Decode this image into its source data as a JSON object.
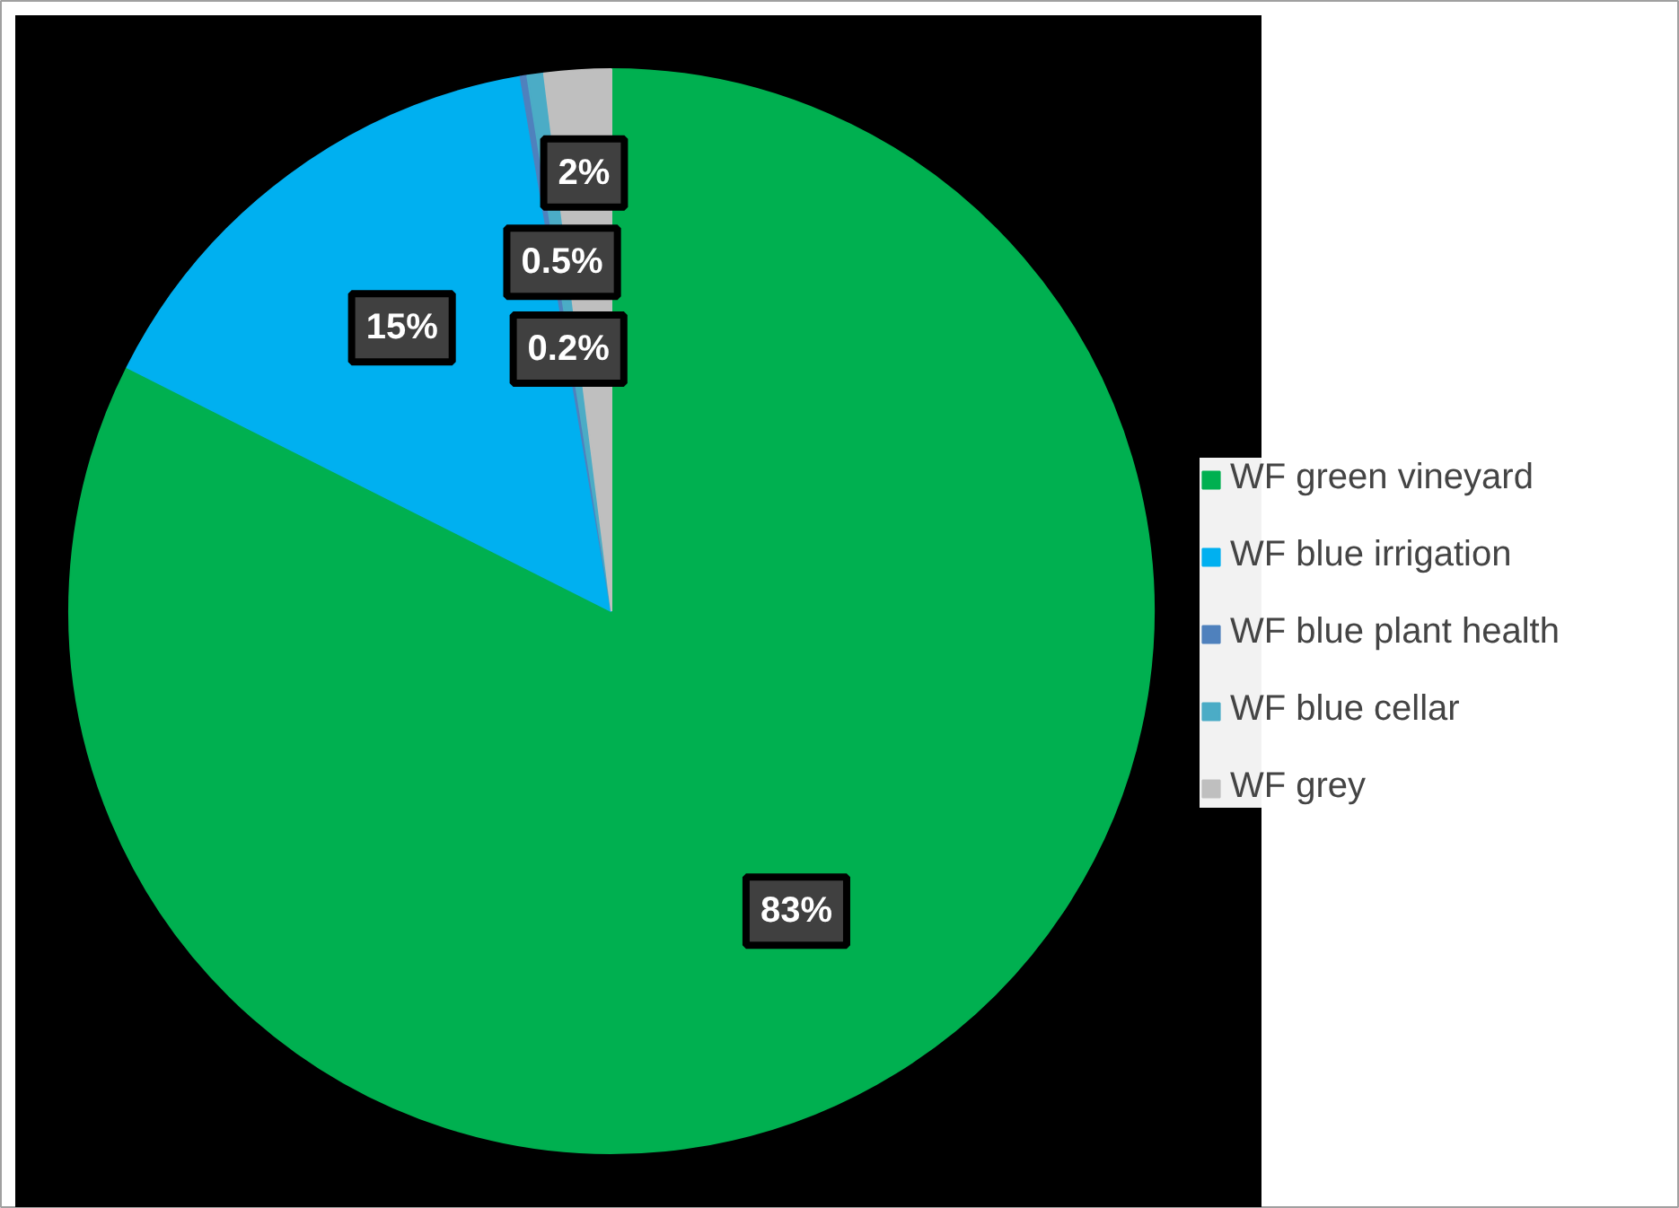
{
  "chart_data": {
    "type": "pie",
    "categories": [
      "WF green vineyard",
      "WF blue irrigation",
      "WF blue plant health",
      "WF blue cellar",
      "WF grey"
    ],
    "values": [
      83,
      15,
      0.2,
      0.5,
      2
    ],
    "colors": [
      "#00b050",
      "#00b0f0",
      "#4f81bd",
      "#4bacc6",
      "#bfbfbf"
    ],
    "value_labels": [
      "83%",
      "15%",
      "0.2%",
      "0.5%",
      "2%"
    ],
    "legend": "right"
  }
}
